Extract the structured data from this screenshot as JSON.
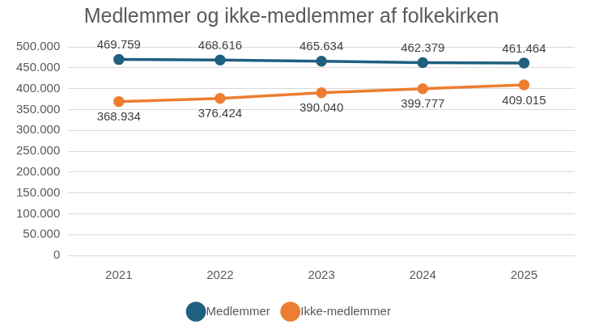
{
  "chart_data": {
    "type": "line",
    "title": "Medlemmer og ikke-medlemmer af folkekirken",
    "categories": [
      "2021",
      "2022",
      "2023",
      "2024",
      "2025"
    ],
    "series": [
      {
        "name": "Medlemmer",
        "color": "#1f5f7f",
        "values": [
          469759,
          468616,
          465634,
          462379,
          461464
        ],
        "value_labels": [
          "469.759",
          "468.616",
          "465.634",
          "462.379",
          "461.464"
        ]
      },
      {
        "name": "Ikke-medlemmer",
        "color": "#ed7d31",
        "values": [
          368934,
          376424,
          390040,
          399777,
          409015
        ],
        "value_labels": [
          "368.934",
          "376.424",
          "390.040",
          "399.777",
          "409.015"
        ]
      }
    ],
    "ylim": [
      0,
      500000
    ],
    "yticks": [
      0,
      {
        "value": 50000,
        "label": "50.000"
      },
      {
        "value": 100000,
        "label": "100.000"
      },
      {
        "value": 150000,
        "label": "150.000"
      },
      {
        "value": 200000,
        "label": "200.000"
      },
      {
        "value": 250000,
        "label": "250.000"
      },
      {
        "value": 300000,
        "label": "300.000"
      },
      {
        "value": 350000,
        "label": "350.000"
      },
      {
        "value": 400000,
        "label": "400.000"
      },
      {
        "value": 450000,
        "label": "450.000"
      },
      {
        "value": 500000,
        "label": "500.000"
      }
    ],
    "grid": true,
    "legend": "bottom",
    "data_labels": true,
    "marker": "circle"
  }
}
